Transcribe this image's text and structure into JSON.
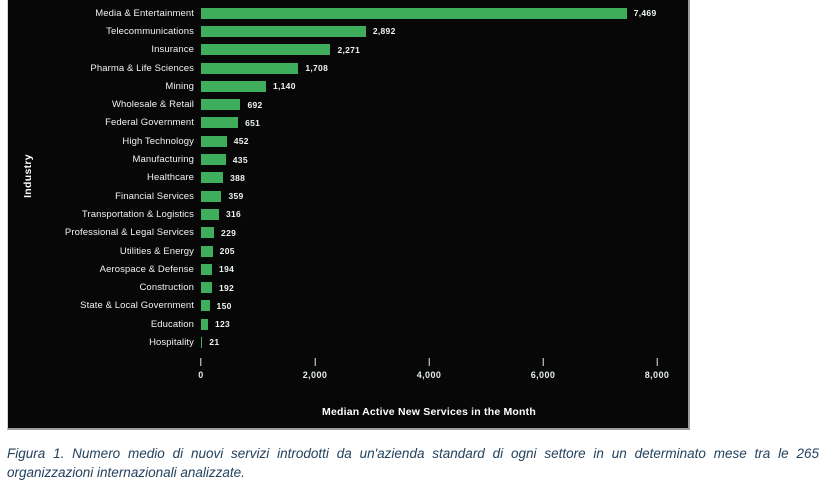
{
  "figure": {
    "caption": "Figura 1. Numero medio di nuovi servizi introdotti da un'azienda standard di ogni settore in un determinato mese tra le 265 organizzazioni internazionali analizzate."
  },
  "chart_data": {
    "type": "bar",
    "orientation": "horizontal",
    "title": "",
    "xlabel": "Median Active New Services in the Month",
    "ylabel": "Industry",
    "categories": [
      "Media & Entertainment",
      "Telecommunications",
      "Insurance",
      "Pharma & Life Sciences",
      "Mining",
      "Wholesale & Retail",
      "Federal Government",
      "High Technology",
      "Manufacturing",
      "Healthcare",
      "Financial Services",
      "Transportation & Logistics",
      "Professional & Legal Services",
      "Utilities & Energy",
      "Aerospace & Defense",
      "Construction",
      "State & Local Government",
      "Education",
      "Hospitality"
    ],
    "values": [
      7469,
      2892,
      2271,
      1708,
      1140,
      692,
      651,
      452,
      435,
      388,
      359,
      316,
      229,
      205,
      194,
      192,
      150,
      123,
      21
    ],
    "value_labels": [
      "7,469",
      "2,892",
      "2,271",
      "1,708",
      "1,140",
      "692",
      "651",
      "452",
      "435",
      "388",
      "359",
      "316",
      "229",
      "205",
      "194",
      "192",
      "150",
      "123",
      "21"
    ],
    "xlim": [
      0,
      8000
    ],
    "xticks": [
      0,
      2000,
      4000,
      6000,
      8000
    ],
    "xtick_labels": [
      "0",
      "2,000",
      "4,000",
      "6,000",
      "8,000"
    ],
    "grid": "off",
    "legend": "none",
    "bar_color": "#3fae5c",
    "panel_background": "#070707",
    "label_color": "#f2f2f2",
    "tick_color": "#e3eee5",
    "caption_color": "#24425e"
  }
}
